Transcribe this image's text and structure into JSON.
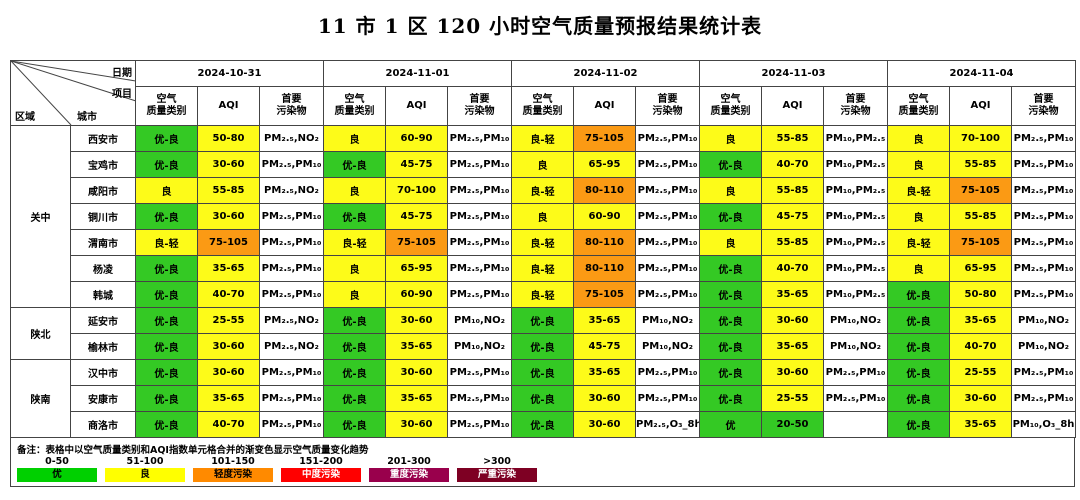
{
  "title": "11 市 1 区 120 小时空气质量预报结果统计表",
  "header": {
    "corner": {
      "date": "日期",
      "item": "项目",
      "region": "区域",
      "city": "城市"
    },
    "dates": [
      "2024-10-31",
      "2024-11-01",
      "2024-11-02",
      "2024-11-03",
      "2024-11-04"
    ],
    "subcols": {
      "cat": "空气\n质量类别",
      "aqi": "AQI",
      "pol": "首要\n污染物"
    }
  },
  "regions": [
    {
      "name": "关中",
      "span": 7
    },
    {
      "name": "陕北",
      "span": 2
    },
    {
      "name": "陕南",
      "span": 3
    }
  ],
  "rows": [
    {
      "city": "西安市",
      "days": [
        [
          "优-良",
          "50-80",
          "PM₂.₅,NO₂",
          "gy"
        ],
        [
          "良",
          "60-90",
          "PM₂.₅,PM₁₀",
          "y"
        ],
        [
          "良-轻",
          "75-105",
          "PM₂.₅,PM₁₀",
          "yo"
        ],
        [
          "良",
          "55-85",
          "PM₁₀,PM₂.₅",
          "y"
        ],
        [
          "良",
          "70-100",
          "PM₂.₅,PM₁₀",
          "y"
        ]
      ]
    },
    {
      "city": "宝鸡市",
      "days": [
        [
          "优-良",
          "30-60",
          "PM₂.₅,PM₁₀",
          "gy"
        ],
        [
          "优-良",
          "45-75",
          "PM₂.₅,PM₁₀",
          "gy"
        ],
        [
          "良",
          "65-95",
          "PM₂.₅,PM₁₀",
          "y"
        ],
        [
          "优-良",
          "40-70",
          "PM₁₀,PM₂.₅",
          "gy"
        ],
        [
          "良",
          "55-85",
          "PM₂.₅,PM₁₀",
          "y"
        ]
      ]
    },
    {
      "city": "咸阳市",
      "days": [
        [
          "良",
          "55-85",
          "PM₂.₅,NO₂",
          "y"
        ],
        [
          "良",
          "70-100",
          "PM₂.₅,PM₁₀",
          "y"
        ],
        [
          "良-轻",
          "80-110",
          "PM₂.₅,PM₁₀",
          "yo"
        ],
        [
          "良",
          "55-85",
          "PM₁₀,PM₂.₅",
          "y"
        ],
        [
          "良-轻",
          "75-105",
          "PM₂.₅,PM₁₀",
          "yo"
        ]
      ]
    },
    {
      "city": "铜川市",
      "days": [
        [
          "优-良",
          "30-60",
          "PM₂.₅,PM₁₀",
          "gy"
        ],
        [
          "优-良",
          "45-75",
          "PM₂.₅,PM₁₀",
          "gy"
        ],
        [
          "良",
          "60-90",
          "PM₂.₅,PM₁₀",
          "y"
        ],
        [
          "优-良",
          "45-75",
          "PM₁₀,PM₂.₅",
          "gy"
        ],
        [
          "良",
          "55-85",
          "PM₂.₅,PM₁₀",
          "y"
        ]
      ]
    },
    {
      "city": "渭南市",
      "days": [
        [
          "良-轻",
          "75-105",
          "PM₂.₅,PM₁₀",
          "yo"
        ],
        [
          "良-轻",
          "75-105",
          "PM₂.₅,PM₁₀",
          "yo"
        ],
        [
          "良-轻",
          "80-110",
          "PM₂.₅,PM₁₀",
          "yo"
        ],
        [
          "良",
          "55-85",
          "PM₁₀,PM₂.₅",
          "y"
        ],
        [
          "良-轻",
          "75-105",
          "PM₂.₅,PM₁₀",
          "yo"
        ]
      ]
    },
    {
      "city": "杨凌",
      "days": [
        [
          "优-良",
          "35-65",
          "PM₂.₅,PM₁₀",
          "gy"
        ],
        [
          "良",
          "65-95",
          "PM₂.₅,PM₁₀",
          "y"
        ],
        [
          "良-轻",
          "80-110",
          "PM₂.₅,PM₁₀",
          "yo"
        ],
        [
          "优-良",
          "40-70",
          "PM₁₀,PM₂.₅",
          "gy"
        ],
        [
          "良",
          "65-95",
          "PM₂.₅,PM₁₀",
          "y"
        ]
      ]
    },
    {
      "city": "韩城",
      "days": [
        [
          "优-良",
          "40-70",
          "PM₂.₅,PM₁₀",
          "gy"
        ],
        [
          "良",
          "60-90",
          "PM₂.₅,PM₁₀",
          "y"
        ],
        [
          "良-轻",
          "75-105",
          "PM₂.₅,PM₁₀",
          "yo"
        ],
        [
          "优-良",
          "35-65",
          "PM₁₀,PM₂.₅",
          "gy"
        ],
        [
          "优-良",
          "50-80",
          "PM₂.₅,PM₁₀",
          "gy"
        ]
      ]
    },
    {
      "city": "延安市",
      "days": [
        [
          "优-良",
          "25-55",
          "PM₂.₅,NO₂",
          "gy"
        ],
        [
          "优-良",
          "30-60",
          "PM₁₀,NO₂",
          "gy"
        ],
        [
          "优-良",
          "35-65",
          "PM₁₀,NO₂",
          "gy"
        ],
        [
          "优-良",
          "30-60",
          "PM₁₀,NO₂",
          "gy"
        ],
        [
          "优-良",
          "35-65",
          "PM₁₀,NO₂",
          "gy"
        ]
      ]
    },
    {
      "city": "榆林市",
      "days": [
        [
          "优-良",
          "30-60",
          "PM₂.₅,NO₂",
          "gy"
        ],
        [
          "优-良",
          "35-65",
          "PM₁₀,NO₂",
          "gy"
        ],
        [
          "优-良",
          "45-75",
          "PM₁₀,NO₂",
          "gy"
        ],
        [
          "优-良",
          "35-65",
          "PM₁₀,NO₂",
          "gy"
        ],
        [
          "优-良",
          "40-70",
          "PM₁₀,NO₂",
          "gy"
        ]
      ]
    },
    {
      "city": "汉中市",
      "days": [
        [
          "优-良",
          "30-60",
          "PM₂.₅,PM₁₀",
          "gy"
        ],
        [
          "优-良",
          "30-60",
          "PM₂.₅,PM₁₀",
          "gy"
        ],
        [
          "优-良",
          "35-65",
          "PM₂.₅,PM₁₀",
          "gy"
        ],
        [
          "优-良",
          "30-60",
          "PM₂.₅,PM₁₀",
          "gy"
        ],
        [
          "优-良",
          "25-55",
          "PM₂.₅,PM₁₀",
          "gy"
        ]
      ]
    },
    {
      "city": "安康市",
      "days": [
        [
          "优-良",
          "35-65",
          "PM₂.₅,PM₁₀",
          "gy"
        ],
        [
          "优-良",
          "35-65",
          "PM₂.₅,PM₁₀",
          "gy"
        ],
        [
          "优-良",
          "30-60",
          "PM₂.₅,PM₁₀",
          "gy"
        ],
        [
          "优-良",
          "25-55",
          "PM₂.₅,PM₁₀",
          "gy"
        ],
        [
          "优-良",
          "30-60",
          "PM₂.₅,PM₁₀",
          "gy"
        ]
      ]
    },
    {
      "city": "商洛市",
      "days": [
        [
          "优-良",
          "40-70",
          "PM₂.₅,PM₁₀",
          "gy"
        ],
        [
          "优-良",
          "30-60",
          "PM₂.₅,PM₁₀",
          "gy"
        ],
        [
          "优-良",
          "30-60",
          "PM₂.₅,O₃_8h",
          "gy"
        ],
        [
          "优",
          "20-50",
          "",
          "g"
        ],
        [
          "优-良",
          "35-65",
          "PM₁₀,O₃_8h",
          "gy"
        ]
      ]
    }
  ],
  "notes": {
    "text": "备注：表格中以空气质量类别和AQI指数单元格合并的渐变色显示空气质量变化趋势",
    "legend": [
      {
        "range": "0-50",
        "label": "优",
        "color": "#00d000",
        "text": "#000"
      },
      {
        "range": "51-100",
        "label": "良",
        "color": "#ffff00",
        "text": "#000"
      },
      {
        "range": "101-150",
        "label": "轻度污染",
        "color": "#ff8a00",
        "text": "#000"
      },
      {
        "range": "151-200",
        "label": "中度污染",
        "color": "#ff0000",
        "text": "#fff"
      },
      {
        "range": "201-300",
        "label": "重度污染",
        "color": "#99004c",
        "text": "#fff"
      },
      {
        "range": ">300",
        "label": "严重污染",
        "color": "#7e0023",
        "text": "#fff"
      }
    ]
  }
}
